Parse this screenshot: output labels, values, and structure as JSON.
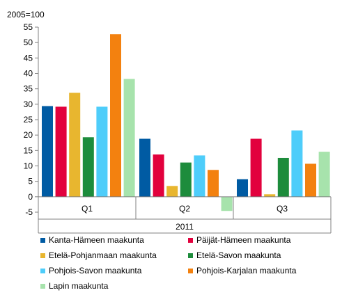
{
  "chart_data": {
    "type": "bar",
    "unit_label": "2005=100",
    "group_label": "2011",
    "categories": [
      "Q1",
      "Q2",
      "Q3"
    ],
    "ylim": [
      -5,
      55
    ],
    "yticks": [
      -5,
      0,
      5,
      10,
      15,
      20,
      25,
      30,
      35,
      40,
      45,
      50,
      55
    ],
    "grid": false,
    "legend_position": "bottom",
    "series": [
      {
        "name": "Kanta-Hämeen maakunta",
        "color": "#005ba3",
        "values": [
          29.4,
          18.8,
          5.7
        ]
      },
      {
        "name": "Päijät-Hämeen maakunta",
        "color": "#e2013d",
        "values": [
          29.2,
          13.7,
          18.8
        ]
      },
      {
        "name": "Etelä-Pohjanmaan maakunta",
        "color": "#e8b62f",
        "values": [
          33.7,
          3.5,
          0.8
        ]
      },
      {
        "name": "Etelä-Savon maakunta",
        "color": "#1d8c3c",
        "values": [
          19.3,
          11.1,
          12.6
        ]
      },
      {
        "name": "Pohjois-Savon maakunta",
        "color": "#4ecdfa",
        "values": [
          29.2,
          13.4,
          21.5
        ]
      },
      {
        "name": "Pohjois-Karjalan maakunta",
        "color": "#f3810f",
        "values": [
          52.7,
          8.7,
          10.7
        ]
      },
      {
        "name": "Lapin maakunta",
        "color": "#a7e3ac",
        "values": [
          38.2,
          -4.6,
          14.6
        ]
      }
    ]
  }
}
